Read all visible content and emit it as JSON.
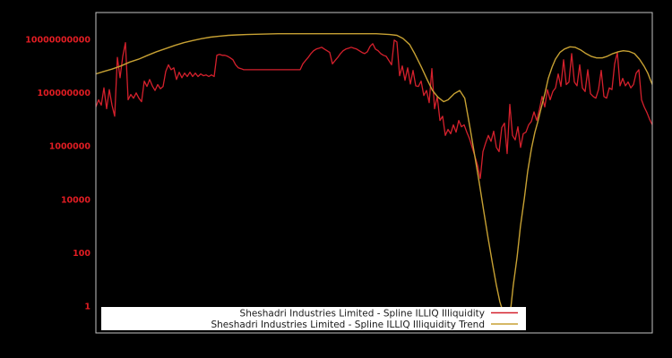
{
  "figure": {
    "background": "#000000",
    "plot_border_color": "#c3c3c3"
  },
  "colors": {
    "illiquidity_line": "#d4202c",
    "trend_line": "#c7a133",
    "tick_label": "#e11d23",
    "legend_bg": "#ffffff",
    "legend_text": "#1a1a1a"
  },
  "legend": {
    "items": [
      {
        "label": "Sheshadri Industries Limited - Spline ILLIQ Illiquidity",
        "series": "illiquidity"
      },
      {
        "label": "Sheshadri Industries Limited - Spline ILLIQ Illiquidity Trend",
        "series": "trend"
      }
    ],
    "position": "lower center"
  },
  "chart_data": {
    "type": "line",
    "title": "",
    "xlabel": "",
    "ylabel": "",
    "x_axis": {
      "tick_labels": [],
      "note": "no visible x tick labels (time index)"
    },
    "y_axis": {
      "scale": "log",
      "ticks": [
        1,
        100,
        10000,
        1000000,
        100000000,
        10000000000
      ],
      "tick_labels": [
        "1",
        "100",
        "10000",
        "1000000",
        "100000000",
        "10000000000"
      ],
      "range": [
        0.1,
        100000000000.0
      ],
      "gridlines": false
    },
    "legend_position": "lower center",
    "series": [
      {
        "name": "Sheshadri Industries Limited - Spline ILLIQ Illiquidity",
        "color": "#d4202c",
        "x_mode": "uniform-0-1",
        "values": [
          29000000.0,
          54000000.0,
          34000000.0,
          150000000.0,
          25000000.0,
          130000000.0,
          34000000.0,
          13000000.0,
          2100000000.0,
          360000000.0,
          2300000000.0,
          7400000000.0,
          54000000.0,
          85000000.0,
          62000000.0,
          98000000.0,
          62000000.0,
          46000000.0,
          270000000.0,
          170000000.0,
          310000000.0,
          180000000.0,
          120000000.0,
          200000000.0,
          140000000.0,
          170000000.0,
          630000000.0,
          1100000000.0,
          720000000.0,
          850000000.0,
          310000000.0,
          580000000.0,
          360000000.0,
          540000000.0,
          400000000.0,
          580000000.0,
          400000000.0,
          540000000.0,
          400000000.0,
          500000000.0,
          430000000.0,
          460000000.0,
          400000000.0,
          460000000.0,
          400000000.0,
          2500000000.0,
          2700000000.0,
          2500000000.0,
          2500000000.0,
          2300000000.0,
          2000000000.0,
          1700000000.0,
          1100000000.0,
          850000000.0,
          790000000.0,
          720000000.0,
          720000000.0,
          720000000.0,
          720000000.0,
          720000000.0,
          720000000.0,
          720000000.0,
          720000000.0,
          720000000.0,
          720000000.0,
          720000000.0,
          720000000.0,
          720000000.0,
          720000000.0,
          720000000.0,
          720000000.0,
          720000000.0,
          720000000.0,
          720000000.0,
          720000000.0,
          720000000.0,
          720000000.0,
          1200000000.0,
          1600000000.0,
          2100000000.0,
          2900000000.0,
          3700000000.0,
          4300000000.0,
          4600000000.0,
          5000000000.0,
          4300000000.0,
          3700000000.0,
          3200000000.0,
          1200000000.0,
          1600000000.0,
          2100000000.0,
          2900000000.0,
          3700000000.0,
          4300000000.0,
          4600000000.0,
          5000000000.0,
          4600000000.0,
          4300000000.0,
          3700000000.0,
          3200000000.0,
          2900000000.0,
          3400000000.0,
          5400000000.0,
          6800000000.0,
          4300000000.0,
          3700000000.0,
          2900000000.0,
          2500000000.0,
          2300000000.0,
          1600000000.0,
          1100000000.0,
          9300000000.0,
          7900000000.0,
          430000000.0,
          1000000000.0,
          290000000.0,
          850000000.0,
          210000000.0,
          680000000.0,
          180000000.0,
          170000000.0,
          270000000.0,
          78000000.0,
          120000000.0,
          42000000.0,
          790000000.0,
          25000000.0,
          72000000.0,
          9100000.0,
          13000000.0,
          2500000.0,
          4200000.0,
          2900000.0,
          6200000.0,
          3300000.0,
          9100000.0,
          5300000.0,
          6200000.0,
          3300000.0,
          1900000.0,
          890000.0,
          420000.0,
          190000.0,
          61000.0,
          620000.0,
          1300000.0,
          2500000.0,
          1500000.0,
          3600000.0,
          890000.0,
          620000.0,
          4900000.0,
          7200000.0,
          520000.0,
          36000000.0,
          2500000.0,
          1700000.0,
          5300000.0,
          890000.0,
          2900000.0,
          3300000.0,
          6200000.0,
          8300000.0,
          19000000.0,
          9100000.0,
          23000000.0,
          72000000.0,
          29000000.0,
          130000000.0,
          54000000.0,
          110000000.0,
          150000000.0,
          500000000.0,
          170000000.0,
          1700000000.0,
          200000000.0,
          250000000.0,
          2900000000.0,
          250000000.0,
          180000000.0,
          1100000000.0,
          150000000.0,
          110000000.0,
          720000000.0,
          91000000.0,
          72000000.0,
          62000000.0,
          130000000.0,
          680000000.0,
          72000000.0,
          62000000.0,
          150000000.0,
          130000000.0,
          1200000000.0,
          3200000000.0,
          180000000.0,
          340000000.0,
          180000000.0,
          250000000.0,
          150000000.0,
          200000000.0,
          540000000.0,
          720000000.0,
          54000000.0,
          29000000.0,
          18000000.0,
          10000000.0,
          6200000.0
        ]
      },
      {
        "name": "Sheshadri Industries Limited - Spline ILLIQ Illiquidity Trend",
        "color": "#c7a133",
        "x_mode": "explicit",
        "x": [
          0,
          0.013,
          0.029,
          0.045,
          0.061,
          0.077,
          0.093,
          0.109,
          0.126,
          0.142,
          0.158,
          0.174,
          0.19,
          0.206,
          0.222,
          0.238,
          0.254,
          0.271,
          0.295,
          0.327,
          0.375,
          0.423,
          0.472,
          0.504,
          0.528,
          0.541,
          0.552,
          0.564,
          0.573,
          0.585,
          0.596,
          0.605,
          0.615,
          0.625,
          0.633,
          0.644,
          0.654,
          0.663,
          0.673,
          0.681,
          0.689,
          0.697,
          0.705,
          0.713,
          0.72,
          0.726,
          0.731,
          0.736,
          0.739,
          0.742,
          0.746,
          0.75,
          0.757,
          0.763,
          0.77,
          0.776,
          0.783,
          0.789,
          0.794,
          0.8,
          0.807,
          0.813,
          0.82,
          0.826,
          0.834,
          0.842,
          0.852,
          0.861,
          0.871,
          0.881,
          0.89,
          0.9,
          0.91,
          0.919,
          0.929,
          0.939,
          0.948,
          0.958,
          0.968,
          0.977,
          0.985,
          0.992,
          0.997,
          1
        ],
        "values": [
          500000000.0,
          610000000.0,
          760000000.0,
          1000000000.0,
          1400000000.0,
          1800000000.0,
          2500000000.0,
          3400000000.0,
          4500000000.0,
          5900000000.0,
          7400000000.0,
          8900000000.0,
          10500000000.0,
          12000000000.0,
          13000000000.0,
          14000000000.0,
          14500000000.0,
          15000000000.0,
          15500000000.0,
          16000000000.0,
          16000000000.0,
          16000000000.0,
          16000000000.0,
          16000000000.0,
          15000000000.0,
          14000000000.0,
          10700000000.0,
          6300000000.0,
          2900000000.0,
          910000000.0,
          290000000.0,
          120000000.0,
          67000000.0,
          46000000.0,
          54000000.0,
          91000000.0,
          120000000.0,
          62000000.0,
          4200000.0,
          420000.0,
          42000.0,
          3800,
          350,
          37,
          5.9,
          1.5,
          0.68,
          0.37,
          0.32,
          0.5,
          1.0,
          5.9,
          69,
          950,
          11000.0,
          110000.0,
          830000.0,
          3300000.0,
          7800000.0,
          25000000.0,
          91000000.0,
          340000000.0,
          910000000.0,
          1800000000.0,
          3200000000.0,
          4300000000.0,
          5200000000.0,
          5000000000.0,
          4000000000.0,
          2900000000.0,
          2300000000.0,
          2000000000.0,
          2000000000.0,
          2300000000.0,
          2900000000.0,
          3400000000.0,
          3700000000.0,
          3500000000.0,
          2900000000.0,
          1800000000.0,
          1000000000.0,
          540000000.0,
          290000000.0,
          200000000.0
        ]
      }
    ]
  }
}
